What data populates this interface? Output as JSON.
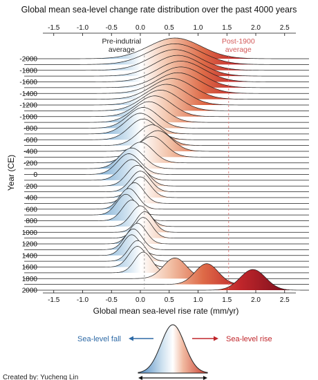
{
  "chart_data": {
    "type": "ridgeline",
    "title": "Global mean sea-level change rate distribution over the past 4000 years",
    "xlabel": "Global mean sea-level rise rate (mm/yr)",
    "ylabel": "Year (CE)",
    "xlim": [
      -1.8,
      2.9
    ],
    "x_ticks": [
      -1.5,
      -1.0,
      -0.5,
      0,
      0.5,
      1.0,
      1.5,
      2.0,
      2.5
    ],
    "x_tick_labels": [
      "-1.5",
      "-1.0",
      "-0.5",
      "0.0",
      "0.5",
      "1.0",
      "1.5",
      "2.0",
      "2.5"
    ],
    "y_tick_labels": [
      "-2000",
      "-1800",
      "-1600",
      "-1400",
      "-1200",
      "-1000",
      "-800",
      "-600",
      "-400",
      "-200",
      "0",
      "200",
      "400",
      "600",
      "800",
      "1000",
      "1200",
      "1400",
      "1600",
      "1800",
      "2000"
    ],
    "year_start": -2000,
    "year_end": 2000,
    "year_step": 100,
    "color_scale": "diverging: blue for negative (fall), white at zero, red for positive (rise)",
    "reference_lines": [
      {
        "label_lines": [
          "Pre-indutrial",
          "average"
        ],
        "x": 0.07
      },
      {
        "label_lines": [
          "Post-1900",
          "average"
        ],
        "x": 1.53
      }
    ],
    "ridge_peaks": [
      {
        "year": -2000,
        "mean": 0.6,
        "sd": 0.45
      },
      {
        "year": -1900,
        "mean": 0.6,
        "sd": 0.45
      },
      {
        "year": -1800,
        "mean": 0.6,
        "sd": 0.42
      },
      {
        "year": -1700,
        "mean": 0.65,
        "sd": 0.4
      },
      {
        "year": -1600,
        "mean": 0.7,
        "sd": 0.4
      },
      {
        "year": -1500,
        "mean": 0.7,
        "sd": 0.38
      },
      {
        "year": -1400,
        "mean": 0.65,
        "sd": 0.38
      },
      {
        "year": -1300,
        "mean": 0.55,
        "sd": 0.36
      },
      {
        "year": -1200,
        "mean": 0.45,
        "sd": 0.34
      },
      {
        "year": -1100,
        "mean": 0.35,
        "sd": 0.32
      },
      {
        "year": -1000,
        "mean": 0.25,
        "sd": 0.3
      },
      {
        "year": -900,
        "mean": 0.15,
        "sd": 0.28
      },
      {
        "year": -800,
        "mean": 0.05,
        "sd": 0.26
      },
      {
        "year": -700,
        "mean": 0.0,
        "sd": 0.25
      },
      {
        "year": -600,
        "mean": 0.05,
        "sd": 0.24
      },
      {
        "year": -500,
        "mean": 0.2,
        "sd": 0.24
      },
      {
        "year": -400,
        "mean": 0.3,
        "sd": 0.24
      },
      {
        "year": -300,
        "mean": 0.2,
        "sd": 0.23
      },
      {
        "year": -200,
        "mean": 0.0,
        "sd": 0.22
      },
      {
        "year": -100,
        "mean": -0.15,
        "sd": 0.21
      },
      {
        "year": 0,
        "mean": -0.2,
        "sd": 0.2
      },
      {
        "year": 100,
        "mean": -0.15,
        "sd": 0.19
      },
      {
        "year": 200,
        "mean": -0.05,
        "sd": 0.18
      },
      {
        "year": 300,
        "mean": 0.0,
        "sd": 0.17
      },
      {
        "year": 400,
        "mean": 0.0,
        "sd": 0.17
      },
      {
        "year": 500,
        "mean": -0.1,
        "sd": 0.16
      },
      {
        "year": 600,
        "mean": -0.2,
        "sd": 0.16
      },
      {
        "year": 700,
        "mean": -0.25,
        "sd": 0.16
      },
      {
        "year": 800,
        "mean": -0.15,
        "sd": 0.16
      },
      {
        "year": 900,
        "mean": 0.0,
        "sd": 0.16
      },
      {
        "year": 1000,
        "mean": 0.08,
        "sd": 0.15
      },
      {
        "year": 1100,
        "mean": 0.05,
        "sd": 0.15
      },
      {
        "year": 1200,
        "mean": -0.05,
        "sd": 0.15
      },
      {
        "year": 1300,
        "mean": -0.12,
        "sd": 0.15
      },
      {
        "year": 1400,
        "mean": -0.15,
        "sd": 0.15
      },
      {
        "year": 1500,
        "mean": -0.05,
        "sd": 0.15
      },
      {
        "year": 1600,
        "mean": -0.05,
        "sd": 0.15
      },
      {
        "year": 1700,
        "mean": 0.05,
        "sd": 0.15
      },
      {
        "year": 1800,
        "mean": 0.6,
        "sd": 0.2
      },
      {
        "year": 1900,
        "mean": 1.15,
        "sd": 0.2
      },
      {
        "year": 2000,
        "mean": 1.95,
        "sd": 0.22
      }
    ],
    "legend": {
      "fall_label": "Sea-level fall",
      "rise_label": "Sea-level rise"
    },
    "credit": "Created by: Yucheng Lin"
  }
}
